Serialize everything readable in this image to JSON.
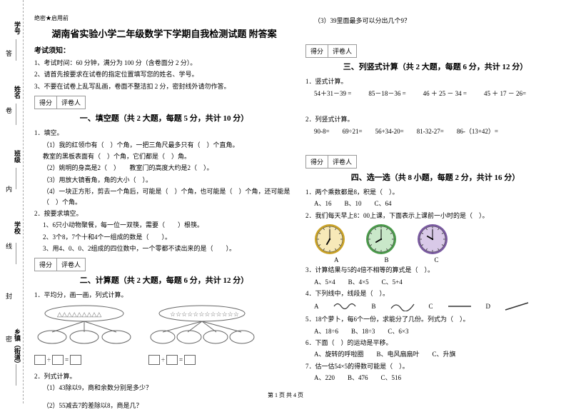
{
  "header_label": "绝密★启用前",
  "title": "湖南省实验小学二年级数学下学期自我检测试题 附答案",
  "instructions_label": "考试须知：",
  "instructions": [
    "1、考试时间：60 分钟，满分为 100 分（含卷面分 2 分）。",
    "2、请首先按要求在试卷的指定位置填写您的姓名、学号。",
    "3、不要在试卷上乱写乱画，卷面不整洁扣 2 分，密封线外请勿作答。"
  ],
  "score_labels": {
    "score": "得分",
    "reviewer": "评卷人"
  },
  "sections": {
    "s1": {
      "title": "一、填空题（共 2 大题，每题 5 分，共计 10 分）",
      "q1": {
        "stem": "1．填空。",
        "items": [
          "（1）我的红领巾有（　）个角，一把三角尺最多只有（　）个直角。",
          "教室的黑板表面有（　）个角，它们都是（　）角。",
          "（2）姚明的身高是2（　）　　教室门的高度大约是2（　）。",
          "（3）用放大镜看角，角的大小（　）。",
          "（4）一块正方形，剪去一个角后，可能是（　）个角，也可能是（　）个角，还可能是（　）个角。"
        ]
      },
      "q2": {
        "stem": "2．按要求填空。",
        "items": [
          "1、6只小动物聚餐，每一位一双筷，需要（　　）根筷。",
          "2、3个8，7个十和4个一组成的数是（　　）。",
          "3、用4、0、0、2组成的四位数中，一个零都不读出来的是（　　）。"
        ]
      }
    },
    "s2": {
      "title": "二、计算题（共 2 大题，每题 6 分，共计 12 分）",
      "q1": "1．平均分，画一画，列式计算。",
      "q2": {
        "stem": "2．列式计算。",
        "items": [
          "（1）43除以9，商和余数分别是多少？",
          "（2）55减去7的差除以8，商是几？",
          "（3）39里面最多可以分出几个9？"
        ]
      }
    },
    "s3": {
      "title": "三、列竖式计算（共 2 大题，每题 6 分，共计 12 分）",
      "q1": {
        "stem": "1．竖式计算。",
        "row": [
          "54＋31－39 =",
          "85－18－36 =",
          "46 ＋ 25 － 34 =",
          "45 ＋ 17 － 26="
        ]
      },
      "q2": {
        "stem": "2．列竖式计算。",
        "row": [
          "90-8=",
          "69÷21=",
          "56+34-20=",
          "81-32-27=",
          "86-（13+42）="
        ]
      }
    },
    "s4": {
      "title": "四、选一选（共 8 小题，每题 2 分，共计 16 分）",
      "q1": {
        "stem": "1．两个乘数都是8，积是（　）。",
        "opts": "A、16　　B、10　　C、64"
      },
      "q2": {
        "stem": "2．我们每天早上8：00上课，下面表示上课前一小时的是（　）。"
      },
      "q3": {
        "stem": "3．计算结果与5的4倍不相等的算式是（　）。",
        "opts": "A、5×4　　B、4×5　　C、5+4"
      },
      "q4": {
        "stem": "4．下列线中，线段是（　）。"
      },
      "q5": {
        "stem": "5．18个萝卜，每6个一份，求能分了几份。列式为（　）。",
        "opts": "A、18÷6　　B、18÷3　　C、6×3"
      },
      "q6": {
        "stem": "6．下面（　）的运动是平移。",
        "opts": "A、旋转的呼啦圈　　B、电风扇扇叶　　C、升旗"
      },
      "q7": {
        "stem": "7．估一估54×5的得数可能是（　）。",
        "opts": "A、220　　B、476　　C、516"
      }
    },
    "clock_labels": [
      "A",
      "B",
      "C"
    ],
    "wave_labels": [
      "A",
      "B",
      "C",
      "D"
    ]
  },
  "clocks": [
    {
      "face": "#f7e9b8",
      "rim": "#c9a227",
      "hour": 210,
      "min": 0
    },
    {
      "face": "#c9e8c9",
      "rim": "#4a9a4a",
      "hour": 240,
      "min": 0
    },
    {
      "face": "#d9c9e8",
      "rim": "#7a5aa0",
      "hour": 300,
      "min": 0
    }
  ],
  "binding": {
    "fields": [
      "学号",
      "姓名",
      "班级",
      "学校",
      "乡镇（街道）"
    ],
    "inner": [
      "答",
      "卷",
      "内",
      "线",
      "封",
      "密"
    ]
  },
  "footer": "第 1 页 共 4 页"
}
